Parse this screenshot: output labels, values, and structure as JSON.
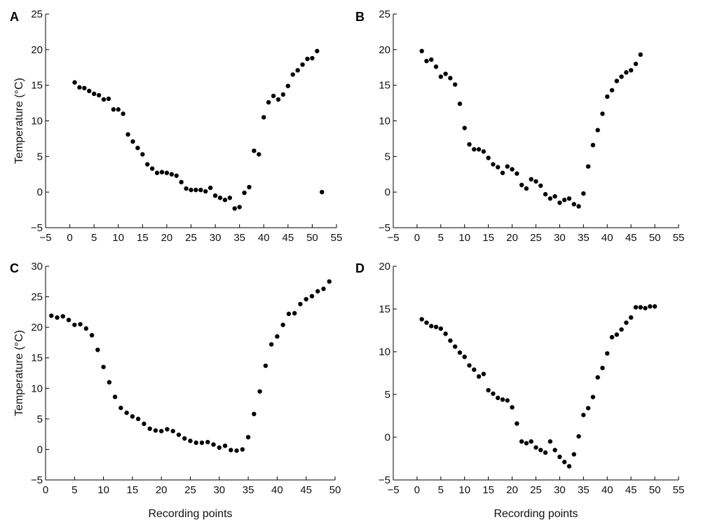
{
  "chart_data": [
    {
      "panel": "A",
      "type": "scatter",
      "xlabel": "",
      "ylabel": "Temperature (°C)",
      "xlim": [
        -5,
        55
      ],
      "ylim": [
        -5,
        25
      ],
      "xticks": [
        -5,
        0,
        5,
        10,
        15,
        20,
        25,
        30,
        35,
        40,
        45,
        50,
        55
      ],
      "yticks": [
        -5,
        0,
        5,
        10,
        15,
        20,
        25
      ],
      "grid": false,
      "x": [
        1,
        2,
        3,
        4,
        5,
        6,
        7,
        8,
        9,
        10,
        11,
        12,
        13,
        14,
        15,
        16,
        17,
        18,
        19,
        20,
        21,
        22,
        23,
        24,
        25,
        26,
        27,
        28,
        29,
        30,
        31,
        32,
        33,
        34,
        35,
        36,
        37,
        38,
        39,
        40,
        41,
        42,
        43,
        44,
        45,
        46,
        47,
        48,
        49,
        50,
        51,
        52
      ],
      "y": [
        15.4,
        14.7,
        14.6,
        14.2,
        13.8,
        13.6,
        13.0,
        13.1,
        11.6,
        11.6,
        11.0,
        8.1,
        7.1,
        6.2,
        5.3,
        3.9,
        3.3,
        2.7,
        2.8,
        2.7,
        2.5,
        2.3,
        1.4,
        0.5,
        0.3,
        0.3,
        0.3,
        0.1,
        0.6,
        -0.5,
        -0.8,
        -1.1,
        -0.8,
        -2.3,
        -2.1,
        -0.1,
        0.7,
        5.8,
        5.3,
        10.5,
        12.6,
        13.5,
        13.0,
        13.7,
        14.9,
        16.5,
        17.1,
        17.9,
        18.7,
        18.8,
        19.8,
        0
      ]
    },
    {
      "panel": "B",
      "type": "scatter",
      "xlabel": "",
      "ylabel": "",
      "xlim": [
        -5,
        55
      ],
      "ylim": [
        -5,
        25
      ],
      "xticks": [
        -5,
        0,
        5,
        10,
        15,
        20,
        25,
        30,
        35,
        40,
        45,
        50,
        55
      ],
      "yticks": [
        -5,
        0,
        5,
        10,
        15,
        20,
        25
      ],
      "grid": false,
      "x": [
        1,
        2,
        3,
        4,
        5,
        6,
        7,
        8,
        9,
        10,
        11,
        12,
        13,
        14,
        15,
        16,
        17,
        18,
        19,
        20,
        21,
        22,
        23,
        24,
        25,
        26,
        27,
        28,
        29,
        30,
        31,
        32,
        33,
        34,
        35,
        36,
        37,
        38,
        39,
        40,
        41,
        42,
        43,
        44,
        45,
        46,
        47
      ],
      "y": [
        19.8,
        18.4,
        18.6,
        17.6,
        16.2,
        16.6,
        16.0,
        15.1,
        12.4,
        9.0,
        6.7,
        6.0,
        6.0,
        5.7,
        4.8,
        3.9,
        3.5,
        2.7,
        3.6,
        3.2,
        2.6,
        1.0,
        0.5,
        1.8,
        1.5,
        0.9,
        -0.3,
        -0.9,
        -0.6,
        -1.5,
        -1.1,
        -0.9,
        -1.7,
        -2.0,
        -0.2,
        3.6,
        6.6,
        8.7,
        11.0,
        13.4,
        14.3,
        15.6,
        16.2,
        16.8,
        17.1,
        18.0,
        19.3
      ]
    },
    {
      "panel": "C",
      "type": "scatter",
      "xlabel": "Recording points",
      "ylabel": "Temperature (°C)",
      "xlim": [
        0,
        50
      ],
      "ylim": [
        -5,
        30
      ],
      "xticks": [
        0,
        5,
        10,
        15,
        20,
        25,
        30,
        35,
        40,
        45,
        50
      ],
      "yticks": [
        -5,
        0,
        5,
        10,
        15,
        20,
        25,
        30
      ],
      "grid": false,
      "x": [
        1,
        2,
        3,
        4,
        5,
        6,
        7,
        8,
        9,
        10,
        11,
        12,
        13,
        14,
        15,
        16,
        17,
        18,
        19,
        20,
        21,
        22,
        23,
        24,
        25,
        26,
        27,
        28,
        29,
        30,
        31,
        32,
        33,
        34,
        35,
        36,
        37,
        38,
        39,
        40,
        41,
        42,
        43,
        44,
        45,
        46,
        47,
        48,
        49
      ],
      "y": [
        21.9,
        21.6,
        21.8,
        21.2,
        20.4,
        20.5,
        19.8,
        18.7,
        16.3,
        13.5,
        11.0,
        8.6,
        6.8,
        6.0,
        5.4,
        5.0,
        4.2,
        3.4,
        3.1,
        3.0,
        3.3,
        3.0,
        2.4,
        1.8,
        1.4,
        1.1,
        1.1,
        1.2,
        0.8,
        0.3,
        0.6,
        -0.1,
        -0.2,
        0.0,
        2.0,
        5.8,
        9.5,
        13.7,
        17.2,
        18.5,
        20.4,
        22.2,
        22.3,
        23.8,
        24.6,
        25.1,
        25.9,
        26.3,
        27.5
      ]
    },
    {
      "panel": "D",
      "type": "scatter",
      "xlabel": "Recording points",
      "ylabel": "",
      "xlim": [
        -5,
        55
      ],
      "ylim": [
        -5,
        20
      ],
      "xticks": [
        -5,
        0,
        5,
        10,
        15,
        20,
        25,
        30,
        35,
        40,
        45,
        50,
        55
      ],
      "yticks": [
        -5,
        0,
        5,
        10,
        15,
        20
      ],
      "grid": false,
      "x": [
        1,
        2,
        3,
        4,
        5,
        6,
        7,
        8,
        9,
        10,
        11,
        12,
        13,
        14,
        15,
        16,
        17,
        18,
        19,
        20,
        21,
        22,
        23,
        24,
        25,
        26,
        27,
        28,
        29,
        30,
        31,
        32,
        33,
        34,
        35,
        36,
        37,
        38,
        39,
        40,
        41,
        42,
        43,
        44,
        45,
        46,
        47,
        48,
        49,
        50
      ],
      "y": [
        13.8,
        13.4,
        13.0,
        12.9,
        12.7,
        12.1,
        11.3,
        10.6,
        9.9,
        9.4,
        8.4,
        7.9,
        7.1,
        7.4,
        5.5,
        5.1,
        4.6,
        4.4,
        4.3,
        3.5,
        1.6,
        -0.5,
        -0.7,
        -0.5,
        -1.2,
        -1.5,
        -1.8,
        -0.5,
        -1.5,
        -2.3,
        -2.9,
        -3.4,
        -2.0,
        0.1,
        2.6,
        3.4,
        4.7,
        7.0,
        8.1,
        9.8,
        11.7,
        12.0,
        12.6,
        13.4,
        14.0,
        15.2,
        15.2,
        15.1,
        15.3,
        15.3
      ]
    }
  ]
}
